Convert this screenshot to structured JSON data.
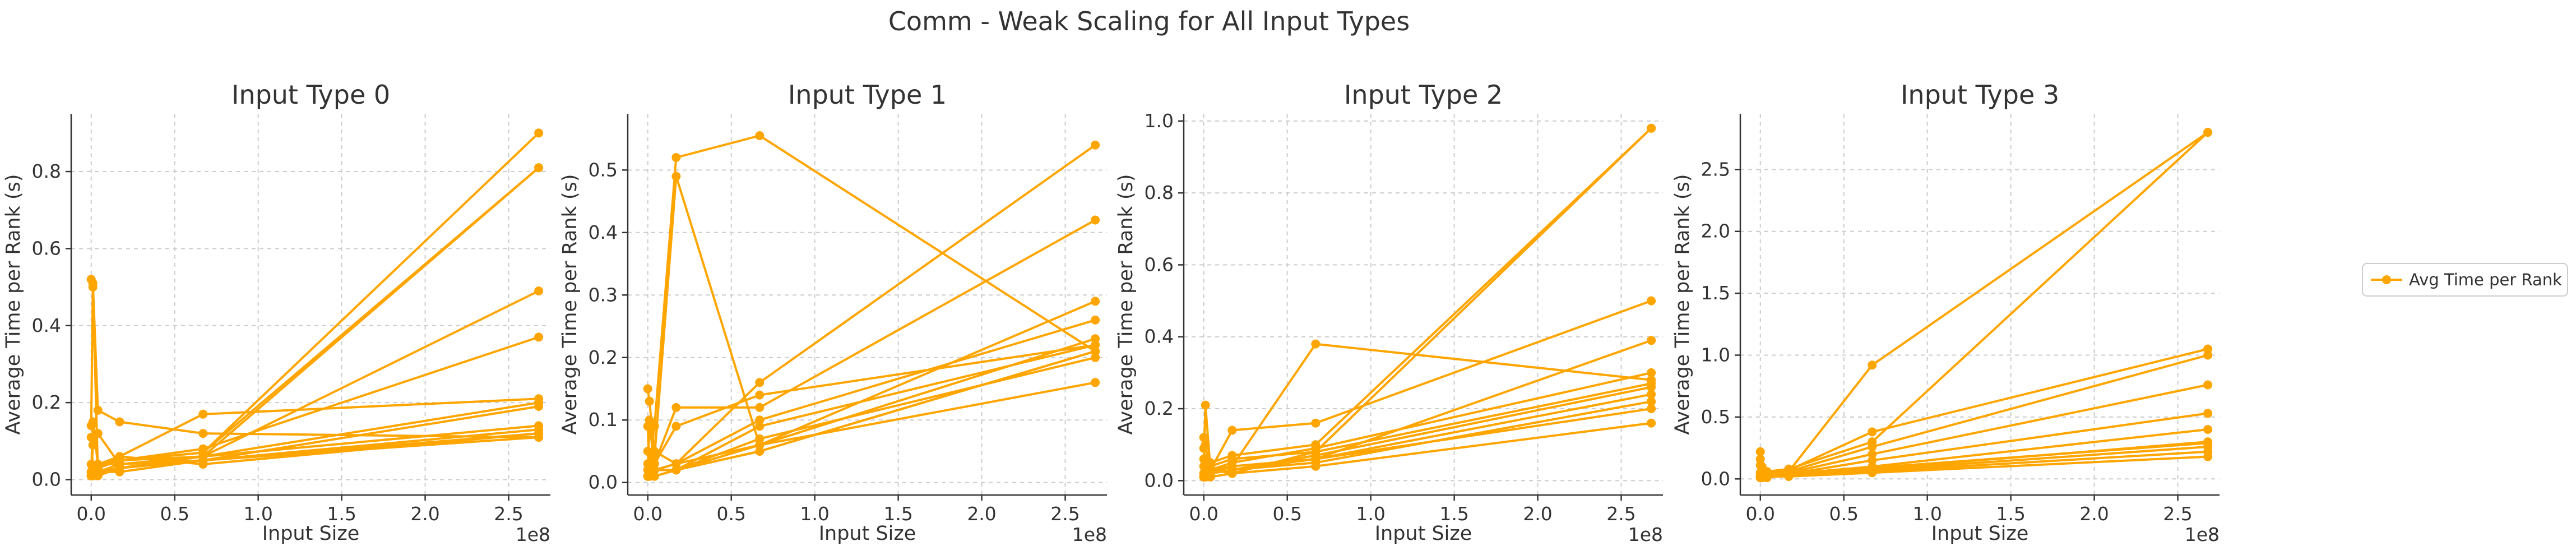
{
  "figure": {
    "suptitle": "Comm - Weak Scaling for All Input Types",
    "series_color": "#FFA500",
    "legend": {
      "label": "Avg Time per Rank",
      "placement": "center-right"
    }
  },
  "chart_data": [
    {
      "type": "line",
      "title": "Input Type 0",
      "xlabel": "Input Size",
      "ylabel": "Average Time per Rank (s)",
      "x_offset_label": "1e8",
      "xlim": [
        -0.12,
        2.75
      ],
      "ylim": [
        -0.04,
        0.95
      ],
      "xticks": [
        0.0,
        0.5,
        1.0,
        1.5,
        2.0,
        2.5
      ],
      "xtick_labels": [
        "0.0",
        "0.5",
        "1.0",
        "1.5",
        "2.0",
        "2.5"
      ],
      "yticks": [
        0.0,
        0.2,
        0.4,
        0.6,
        0.8
      ],
      "ytick_labels": [
        "0.0",
        "0.2",
        "0.4",
        "0.6",
        "0.8"
      ],
      "series": [
        {
          "x": [
            0.0,
            0.01,
            0.04,
            0.17,
            0.67,
            2.68
          ],
          "y": [
            0.01,
            0.02,
            0.03,
            0.05,
            0.07,
            0.9
          ]
        },
        {
          "x": [
            0.0,
            0.01,
            0.04,
            0.17,
            0.67,
            2.68
          ],
          "y": [
            0.52,
            0.51,
            0.18,
            0.15,
            0.12,
            0.11
          ]
        },
        {
          "x": [
            0.0,
            0.01,
            0.04,
            0.17,
            0.67,
            2.68
          ],
          "y": [
            0.01,
            0.15,
            0.04,
            0.05,
            0.07,
            0.81
          ]
        },
        {
          "x": [
            0.0,
            0.01,
            0.04,
            0.17,
            0.67,
            2.68
          ],
          "y": [
            0.14,
            0.5,
            0.02,
            0.03,
            0.06,
            0.2
          ]
        },
        {
          "x": [
            0.0,
            0.01,
            0.04,
            0.17,
            0.67,
            2.68
          ],
          "y": [
            0.01,
            0.09,
            0.12,
            0.04,
            0.06,
            0.49
          ]
        },
        {
          "x": [
            0.0,
            0.01,
            0.04,
            0.17,
            0.67,
            2.68
          ],
          "y": [
            0.02,
            0.03,
            0.04,
            0.06,
            0.17,
            0.21
          ]
        },
        {
          "x": [
            0.0,
            0.01,
            0.04,
            0.17,
            0.67,
            2.68
          ],
          "y": [
            0.01,
            0.02,
            0.03,
            0.05,
            0.08,
            0.37
          ]
        },
        {
          "x": [
            0.0,
            0.01,
            0.04,
            0.17,
            0.67,
            2.68
          ],
          "y": [
            0.11,
            0.03,
            0.02,
            0.04,
            0.06,
            0.81
          ]
        },
        {
          "x": [
            0.0,
            0.01,
            0.04,
            0.17,
            0.67,
            2.68
          ],
          "y": [
            0.01,
            0.02,
            0.03,
            0.05,
            0.06,
            0.14
          ]
        },
        {
          "x": [
            0.0,
            0.01,
            0.04,
            0.17,
            0.67,
            2.68
          ],
          "y": [
            0.02,
            0.01,
            0.02,
            0.03,
            0.05,
            0.13
          ]
        },
        {
          "x": [
            0.0,
            0.01,
            0.04,
            0.17,
            0.67,
            2.68
          ],
          "y": [
            0.01,
            0.02,
            0.03,
            0.06,
            0.04,
            0.12
          ]
        },
        {
          "x": [
            0.0,
            0.01,
            0.04,
            0.17,
            0.67,
            2.68
          ],
          "y": [
            0.04,
            0.02,
            0.01,
            0.03,
            0.05,
            0.12
          ]
        },
        {
          "x": [
            0.0,
            0.01,
            0.04,
            0.17,
            0.67,
            2.68
          ],
          "y": [
            0.02,
            0.03,
            0.04,
            0.04,
            0.05,
            0.11
          ]
        },
        {
          "x": [
            0.0,
            0.01,
            0.04,
            0.17,
            0.67,
            2.68
          ],
          "y": [
            0.01,
            0.01,
            0.02,
            0.02,
            0.05,
            0.19
          ]
        }
      ]
    },
    {
      "type": "line",
      "title": "Input Type 1",
      "xlabel": "Input Size",
      "ylabel": "Average Time per Rank (s)",
      "x_offset_label": "1e8",
      "xlim": [
        -0.12,
        2.75
      ],
      "ylim": [
        -0.02,
        0.59
      ],
      "xticks": [
        0.0,
        0.5,
        1.0,
        1.5,
        2.0,
        2.5
      ],
      "xtick_labels": [
        "0.0",
        "0.5",
        "1.0",
        "1.5",
        "2.0",
        "2.5"
      ],
      "yticks": [
        0.0,
        0.1,
        0.2,
        0.3,
        0.4,
        0.5
      ],
      "ytick_labels": [
        "0.0",
        "0.1",
        "0.2",
        "0.3",
        "0.4",
        "0.5"
      ],
      "series": [
        {
          "x": [
            0.0,
            0.01,
            0.04,
            0.17,
            0.67,
            2.68
          ],
          "y": [
            0.01,
            0.02,
            0.09,
            0.52,
            0.555,
            0.21
          ]
        },
        {
          "x": [
            0.0,
            0.01,
            0.04,
            0.17,
            0.67,
            2.68
          ],
          "y": [
            0.02,
            0.03,
            0.04,
            0.49,
            0.06,
            0.29
          ]
        },
        {
          "x": [
            0.0,
            0.01,
            0.04,
            0.17,
            0.67,
            2.68
          ],
          "y": [
            0.15,
            0.13,
            0.05,
            0.03,
            0.16,
            0.54
          ]
        },
        {
          "x": [
            0.0,
            0.01,
            0.04,
            0.17,
            0.67,
            2.68
          ],
          "y": [
            0.01,
            0.02,
            0.03,
            0.12,
            0.12,
            0.42
          ]
        },
        {
          "x": [
            0.0,
            0.01,
            0.04,
            0.17,
            0.67,
            2.68
          ],
          "y": [
            0.09,
            0.02,
            0.03,
            0.09,
            0.14,
            0.22
          ]
        },
        {
          "x": [
            0.0,
            0.01,
            0.04,
            0.17,
            0.67,
            2.68
          ],
          "y": [
            0.01,
            0.01,
            0.02,
            0.03,
            0.1,
            0.26
          ]
        },
        {
          "x": [
            0.0,
            0.01,
            0.04,
            0.17,
            0.67,
            2.68
          ],
          "y": [
            0.05,
            0.01,
            0.02,
            0.02,
            0.06,
            0.23
          ]
        },
        {
          "x": [
            0.0,
            0.01,
            0.04,
            0.17,
            0.67,
            2.68
          ],
          "y": [
            0.01,
            0.02,
            0.02,
            0.02,
            0.05,
            0.21
          ]
        },
        {
          "x": [
            0.0,
            0.01,
            0.04,
            0.17,
            0.67,
            2.68
          ],
          "y": [
            0.02,
            0.01,
            0.01,
            0.02,
            0.07,
            0.2
          ]
        },
        {
          "x": [
            0.0,
            0.01,
            0.04,
            0.17,
            0.67,
            2.68
          ],
          "y": [
            0.01,
            0.01,
            0.02,
            0.03,
            0.06,
            0.16
          ]
        },
        {
          "x": [
            0.0,
            0.01,
            0.04,
            0.17,
            0.67,
            2.68
          ],
          "y": [
            0.03,
            0.02,
            0.01,
            0.02,
            0.05,
            0.21
          ]
        },
        {
          "x": [
            0.0,
            0.01,
            0.04,
            0.17,
            0.67,
            2.68
          ],
          "y": [
            0.01,
            0.1,
            0.02,
            0.02,
            0.09,
            0.22
          ]
        }
      ]
    },
    {
      "type": "line",
      "title": "Input Type 2",
      "xlabel": "Input Size",
      "ylabel": "Average Time per Rank (s)",
      "x_offset_label": "1e8",
      "xlim": [
        -0.12,
        2.75
      ],
      "ylim": [
        -0.04,
        1.02
      ],
      "xticks": [
        0.0,
        0.5,
        1.0,
        1.5,
        2.0,
        2.5
      ],
      "xtick_labels": [
        "0.0",
        "0.5",
        "1.0",
        "1.5",
        "2.0",
        "2.5"
      ],
      "yticks": [
        0.0,
        0.2,
        0.4,
        0.6,
        0.8,
        1.0
      ],
      "ytick_labels": [
        "0.0",
        "0.2",
        "0.4",
        "0.6",
        "0.8",
        "1.0"
      ],
      "series": [
        {
          "x": [
            0.0,
            0.01,
            0.04,
            0.17,
            0.67,
            2.68
          ],
          "y": [
            0.01,
            0.02,
            0.04,
            0.06,
            0.08,
            0.98
          ]
        },
        {
          "x": [
            0.0,
            0.01,
            0.04,
            0.17,
            0.67,
            2.68
          ],
          "y": [
            0.02,
            0.03,
            0.05,
            0.07,
            0.1,
            0.98
          ]
        },
        {
          "x": [
            0.0,
            0.01,
            0.04,
            0.17,
            0.67,
            2.68
          ],
          "y": [
            0.06,
            0.21,
            0.03,
            0.04,
            0.38,
            0.28
          ]
        },
        {
          "x": [
            0.0,
            0.01,
            0.04,
            0.17,
            0.67,
            2.68
          ],
          "y": [
            0.01,
            0.02,
            0.03,
            0.14,
            0.16,
            0.5
          ]
        },
        {
          "x": [
            0.0,
            0.01,
            0.04,
            0.17,
            0.67,
            2.68
          ],
          "y": [
            0.12,
            0.1,
            0.02,
            0.03,
            0.06,
            0.39
          ]
        },
        {
          "x": [
            0.0,
            0.01,
            0.04,
            0.17,
            0.67,
            2.68
          ],
          "y": [
            0.01,
            0.02,
            0.03,
            0.05,
            0.09,
            0.3
          ]
        },
        {
          "x": [
            0.0,
            0.01,
            0.04,
            0.17,
            0.67,
            2.68
          ],
          "y": [
            0.09,
            0.05,
            0.02,
            0.03,
            0.07,
            0.26
          ]
        },
        {
          "x": [
            0.0,
            0.01,
            0.04,
            0.17,
            0.67,
            2.68
          ],
          "y": [
            0.01,
            0.01,
            0.02,
            0.04,
            0.06,
            0.24
          ]
        },
        {
          "x": [
            0.0,
            0.01,
            0.04,
            0.17,
            0.67,
            2.68
          ],
          "y": [
            0.02,
            0.01,
            0.02,
            0.03,
            0.05,
            0.22
          ]
        },
        {
          "x": [
            0.0,
            0.01,
            0.04,
            0.17,
            0.67,
            2.68
          ],
          "y": [
            0.01,
            0.02,
            0.01,
            0.02,
            0.04,
            0.16
          ]
        },
        {
          "x": [
            0.0,
            0.01,
            0.04,
            0.17,
            0.67,
            2.68
          ],
          "y": [
            0.04,
            0.03,
            0.02,
            0.03,
            0.06,
            0.2
          ]
        },
        {
          "x": [
            0.0,
            0.01,
            0.04,
            0.17,
            0.67,
            2.68
          ],
          "y": [
            0.01,
            0.06,
            0.03,
            0.02,
            0.08,
            0.27
          ]
        }
      ]
    },
    {
      "type": "line",
      "title": "Input Type 3",
      "xlabel": "Input Size",
      "ylabel": "Average Time per Rank (s)",
      "x_offset_label": "1e8",
      "xlim": [
        -0.12,
        2.75
      ],
      "ylim": [
        -0.13,
        2.95
      ],
      "xticks": [
        0.0,
        0.5,
        1.0,
        1.5,
        2.0,
        2.5
      ],
      "xtick_labels": [
        "0.0",
        "0.5",
        "1.0",
        "1.5",
        "2.0",
        "2.5"
      ],
      "yticks": [
        0.0,
        0.5,
        1.0,
        1.5,
        2.0,
        2.5
      ],
      "ytick_labels": [
        "0.0",
        "0.5",
        "1.0",
        "1.5",
        "2.0",
        "2.5"
      ],
      "series": [
        {
          "x": [
            0.0,
            0.01,
            0.04,
            0.17,
            0.67,
            2.68
          ],
          "y": [
            0.02,
            0.04,
            0.06,
            0.08,
            0.3,
            2.8
          ]
        },
        {
          "x": [
            0.0,
            0.01,
            0.04,
            0.17,
            0.67,
            2.68
          ],
          "y": [
            0.22,
            0.1,
            0.05,
            0.06,
            0.92,
            2.8
          ]
        },
        {
          "x": [
            0.0,
            0.01,
            0.04,
            0.17,
            0.67,
            2.68
          ],
          "y": [
            0.01,
            0.03,
            0.05,
            0.07,
            0.38,
            1.05
          ]
        },
        {
          "x": [
            0.0,
            0.01,
            0.04,
            0.17,
            0.67,
            2.68
          ],
          "y": [
            0.16,
            0.08,
            0.04,
            0.06,
            0.26,
            1.0
          ]
        },
        {
          "x": [
            0.0,
            0.01,
            0.04,
            0.17,
            0.67,
            2.68
          ],
          "y": [
            0.01,
            0.02,
            0.03,
            0.05,
            0.2,
            0.76
          ]
        },
        {
          "x": [
            0.0,
            0.01,
            0.04,
            0.17,
            0.67,
            2.68
          ],
          "y": [
            0.05,
            0.03,
            0.02,
            0.04,
            0.15,
            0.53
          ]
        },
        {
          "x": [
            0.0,
            0.01,
            0.04,
            0.17,
            0.67,
            2.68
          ],
          "y": [
            0.01,
            0.02,
            0.03,
            0.04,
            0.1,
            0.4
          ]
        },
        {
          "x": [
            0.0,
            0.01,
            0.04,
            0.17,
            0.67,
            2.68
          ],
          "y": [
            0.02,
            0.01,
            0.02,
            0.03,
            0.08,
            0.3
          ]
        },
        {
          "x": [
            0.0,
            0.01,
            0.04,
            0.17,
            0.67,
            2.68
          ],
          "y": [
            0.01,
            0.02,
            0.01,
            0.03,
            0.07,
            0.26
          ]
        },
        {
          "x": [
            0.0,
            0.01,
            0.04,
            0.17,
            0.67,
            2.68
          ],
          "y": [
            0.03,
            0.01,
            0.02,
            0.02,
            0.06,
            0.22
          ]
        },
        {
          "x": [
            0.0,
            0.01,
            0.04,
            0.17,
            0.67,
            2.68
          ],
          "y": [
            0.01,
            0.01,
            0.02,
            0.02,
            0.05,
            0.18
          ]
        },
        {
          "x": [
            0.0,
            0.01,
            0.04,
            0.17,
            0.67,
            2.68
          ],
          "y": [
            0.11,
            0.05,
            0.02,
            0.03,
            0.09,
            0.29
          ]
        }
      ]
    }
  ]
}
